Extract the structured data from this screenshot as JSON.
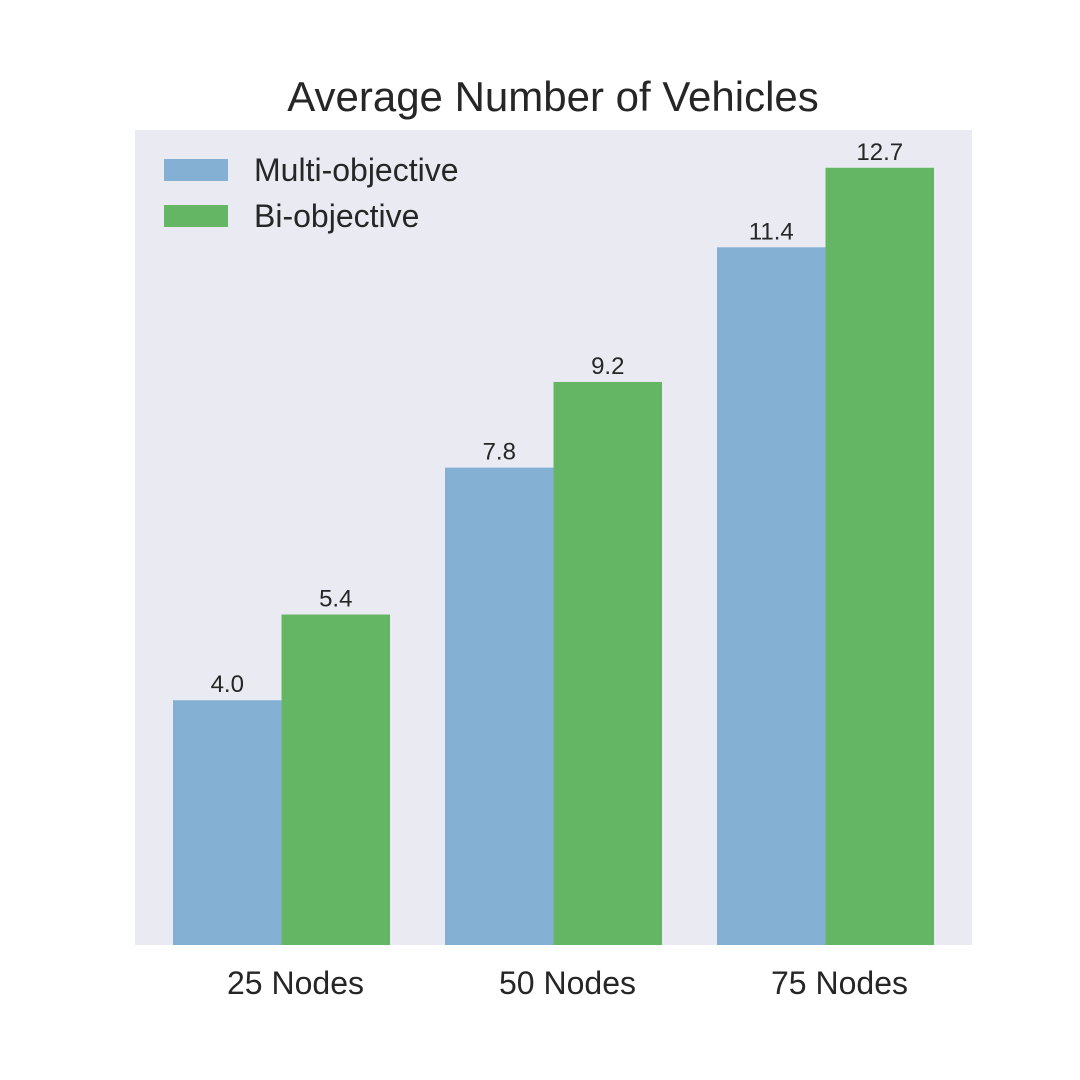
{
  "colors": {
    "plot_background": "#eaeaf2",
    "multi_objective": "#84b0d3",
    "bi_objective": "#64b665",
    "text": "#262626"
  },
  "chart_data": {
    "type": "bar",
    "title": "Average Number of Vehicles",
    "xlabel": "",
    "ylabel": "",
    "categories": [
      "25 Nodes",
      "50 Nodes",
      "75 Nodes"
    ],
    "series": [
      {
        "name": "Multi-objective",
        "values": [
          4.0,
          7.8,
          11.4
        ],
        "labels": [
          "4.0",
          "7.8",
          "11.4"
        ],
        "color": "#84b0d3"
      },
      {
        "name": "Bi-objective",
        "values": [
          5.4,
          9.2,
          12.7
        ],
        "labels": [
          "5.4",
          "9.2",
          "12.7"
        ],
        "color": "#64b665"
      }
    ],
    "ylim": [
      0,
      13.4
    ],
    "grid": false,
    "y_axis_visible": false,
    "legend_position": "upper-left"
  }
}
